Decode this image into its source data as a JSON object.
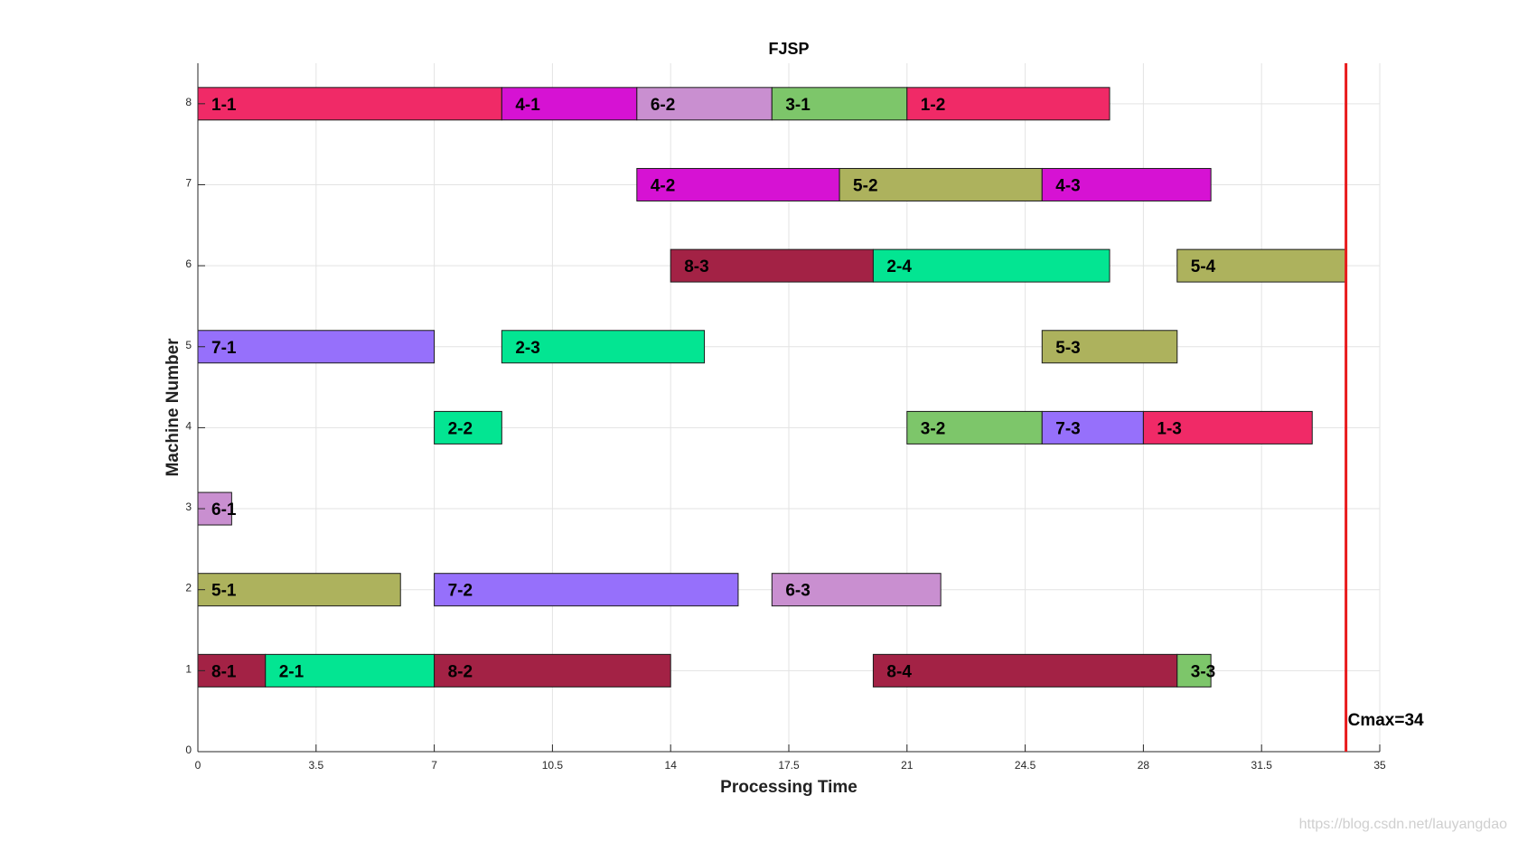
{
  "chart_data": {
    "type": "gantt",
    "title": "FJSP",
    "xlabel": "Processing Time",
    "ylabel": "Machine Number",
    "xlim": [
      0,
      35
    ],
    "ylim": [
      0,
      8.5
    ],
    "xticks": [
      "0",
      "3.5",
      "7",
      "10.5",
      "14",
      "17.5",
      "21",
      "24.5",
      "28",
      "31.5",
      "35"
    ],
    "yticks": [
      "0",
      "1",
      "2",
      "3",
      "4",
      "5",
      "6",
      "7",
      "8"
    ],
    "grid": true,
    "cmax": 34,
    "cmax_label": "Cmax=34",
    "cmax_color": "#e8191b",
    "colors": {
      "job1": "#f02a67",
      "job2": "#03e592",
      "job3": "#7dc66a",
      "job4": "#d612d3",
      "job5": "#adb25d",
      "job6": "#c98fd0",
      "job7": "#9670fb",
      "job8": "#a32245"
    },
    "tasks": [
      {
        "label": "1-1",
        "job": 1,
        "machine": 8,
        "start": 0,
        "end": 9
      },
      {
        "label": "4-1",
        "job": 4,
        "machine": 8,
        "start": 9,
        "end": 13
      },
      {
        "label": "6-2",
        "job": 6,
        "machine": 8,
        "start": 13,
        "end": 17
      },
      {
        "label": "3-1",
        "job": 3,
        "machine": 8,
        "start": 17,
        "end": 21
      },
      {
        "label": "1-2",
        "job": 1,
        "machine": 8,
        "start": 21,
        "end": 27
      },
      {
        "label": "4-2",
        "job": 4,
        "machine": 7,
        "start": 13,
        "end": 19
      },
      {
        "label": "5-2",
        "job": 5,
        "machine": 7,
        "start": 19,
        "end": 25
      },
      {
        "label": "4-3",
        "job": 4,
        "machine": 7,
        "start": 25,
        "end": 30
      },
      {
        "label": "8-3",
        "job": 8,
        "machine": 6,
        "start": 14,
        "end": 20
      },
      {
        "label": "2-4",
        "job": 2,
        "machine": 6,
        "start": 20,
        "end": 27
      },
      {
        "label": "5-4",
        "job": 5,
        "machine": 6,
        "start": 29,
        "end": 34
      },
      {
        "label": "7-1",
        "job": 7,
        "machine": 5,
        "start": 0,
        "end": 7
      },
      {
        "label": "2-3",
        "job": 2,
        "machine": 5,
        "start": 9,
        "end": 15
      },
      {
        "label": "5-3",
        "job": 5,
        "machine": 5,
        "start": 25,
        "end": 29
      },
      {
        "label": "2-2",
        "job": 2,
        "machine": 4,
        "start": 7,
        "end": 9
      },
      {
        "label": "3-2",
        "job": 3,
        "machine": 4,
        "start": 21,
        "end": 25
      },
      {
        "label": "7-3",
        "job": 7,
        "machine": 4,
        "start": 25,
        "end": 28
      },
      {
        "label": "1-3",
        "job": 1,
        "machine": 4,
        "start": 28,
        "end": 33
      },
      {
        "label": "6-1",
        "job": 6,
        "machine": 3,
        "start": 0,
        "end": 1
      },
      {
        "label": "5-1",
        "job": 5,
        "machine": 2,
        "start": 0,
        "end": 6
      },
      {
        "label": "7-2",
        "job": 7,
        "machine": 2,
        "start": 7,
        "end": 16
      },
      {
        "label": "6-3",
        "job": 6,
        "machine": 2,
        "start": 17,
        "end": 22
      },
      {
        "label": "8-1",
        "job": 8,
        "machine": 1,
        "start": 0,
        "end": 2
      },
      {
        "label": "2-1",
        "job": 2,
        "machine": 1,
        "start": 2,
        "end": 7
      },
      {
        "label": "8-2",
        "job": 8,
        "machine": 1,
        "start": 7,
        "end": 14
      },
      {
        "label": "8-4",
        "job": 8,
        "machine": 1,
        "start": 20,
        "end": 29
      },
      {
        "label": "3-3",
        "job": 3,
        "machine": 1,
        "start": 29,
        "end": 30
      }
    ]
  },
  "watermark": "https://blog.csdn.net/lauyangdao"
}
